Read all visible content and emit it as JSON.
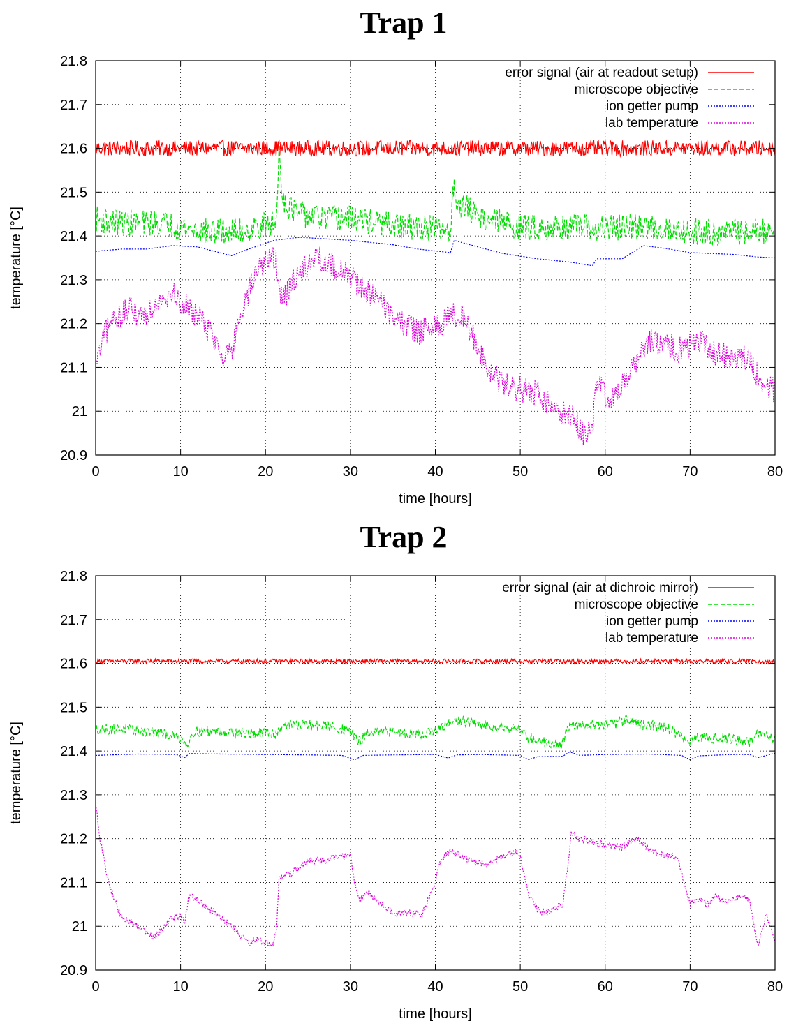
{
  "chart_data": [
    {
      "type": "line",
      "title": "Trap 1",
      "xlabel": "time [hours]",
      "ylabel": "temperature [°C]",
      "xlim": [
        0,
        80
      ],
      "ylim": [
        20.9,
        21.8
      ],
      "xticks": [
        0,
        10,
        20,
        30,
        40,
        50,
        60,
        70,
        80
      ],
      "yticks": [
        20.9,
        21.0,
        21.1,
        21.2,
        21.3,
        21.4,
        21.5,
        21.6,
        21.7,
        21.8
      ],
      "ytick_labels": [
        "20.9",
        "21",
        "21.1",
        "21.2",
        "21.3",
        "21.4",
        "21.5",
        "21.6",
        "21.7",
        "21.8"
      ],
      "grid": true,
      "legend_position": "top-right",
      "series": [
        {
          "name": "error signal (air at readout setup)",
          "color": "#ff0000",
          "dash": "solid",
          "noise": 0.018,
          "x": [
            0,
            80
          ],
          "y": [
            21.6,
            21.6
          ]
        },
        {
          "name": "microscope objective",
          "color": "#00dd00",
          "dash": "dashed",
          "noise": 0.03,
          "x": [
            0,
            2,
            5,
            8,
            10,
            13,
            15,
            17,
            19,
            21.3,
            21.6,
            22.0,
            22.5,
            24,
            27,
            30,
            33,
            36,
            39,
            41.8,
            42.1,
            42.6,
            44,
            46,
            48,
            50,
            53,
            56,
            58,
            59,
            60,
            63,
            66,
            70,
            74,
            77,
            80
          ],
          "y": [
            21.44,
            21.43,
            21.43,
            21.43,
            21.42,
            21.41,
            21.41,
            21.41,
            21.42,
            21.43,
            21.61,
            21.49,
            21.47,
            21.45,
            21.44,
            21.44,
            21.43,
            21.42,
            21.42,
            21.41,
            21.51,
            21.48,
            21.46,
            21.44,
            21.43,
            21.42,
            21.42,
            21.42,
            21.42,
            21.41,
            21.42,
            21.42,
            21.42,
            21.41,
            21.41,
            21.41,
            21.41
          ]
        },
        {
          "name": "ion getter pump",
          "color": "#0000ff",
          "dash": "dotted",
          "noise": 0,
          "x": [
            0,
            3,
            6,
            9,
            12,
            15,
            16,
            18,
            21,
            24,
            30,
            35,
            38,
            41.8,
            42.2,
            45,
            48,
            52,
            56,
            58.5,
            59,
            62,
            63,
            64.5,
            67,
            70,
            75,
            78,
            80
          ],
          "y": [
            21.365,
            21.37,
            21.37,
            21.378,
            21.375,
            21.36,
            21.355,
            21.37,
            21.39,
            21.397,
            21.39,
            21.38,
            21.37,
            21.362,
            21.39,
            21.375,
            21.36,
            21.348,
            21.34,
            21.332,
            21.348,
            21.348,
            21.36,
            21.378,
            21.372,
            21.362,
            21.358,
            21.352,
            21.35
          ]
        },
        {
          "name": "lab temperature",
          "color": "#dd00dd",
          "dash": "dotted",
          "noise": 0.03,
          "x": [
            0,
            1,
            2,
            4,
            6,
            7.5,
            9,
            10.5,
            12,
            13.5,
            15,
            16,
            17,
            18,
            19,
            20,
            21.2,
            21.6,
            22.5,
            24,
            26,
            28,
            30,
            32,
            34,
            36,
            38,
            40,
            42,
            43,
            44,
            45,
            46,
            48,
            50,
            52,
            54,
            56,
            57.5,
            58.5,
            59,
            60,
            61,
            62,
            64,
            65.5,
            67,
            69,
            71,
            73,
            75,
            77,
            78,
            79,
            80
          ],
          "y": [
            21.1,
            21.17,
            21.21,
            21.23,
            21.22,
            21.26,
            21.27,
            21.24,
            21.22,
            21.18,
            21.13,
            21.14,
            21.2,
            21.27,
            21.32,
            21.35,
            21.35,
            21.26,
            21.27,
            21.32,
            21.35,
            21.33,
            21.31,
            21.27,
            21.24,
            21.2,
            21.18,
            21.19,
            21.22,
            21.22,
            21.19,
            21.15,
            21.1,
            21.06,
            21.05,
            21.04,
            21.0,
            20.99,
            20.95,
            20.96,
            21.07,
            21.04,
            21.03,
            21.06,
            21.13,
            21.16,
            21.15,
            21.14,
            21.16,
            21.13,
            21.13,
            21.12,
            21.08,
            21.05,
            21.05
          ]
        }
      ]
    },
    {
      "type": "line",
      "title": "Trap 2",
      "xlabel": "time [hours]",
      "ylabel": "temperature [°C]",
      "xlim": [
        0,
        80
      ],
      "ylim": [
        20.9,
        21.8
      ],
      "xticks": [
        0,
        10,
        20,
        30,
        40,
        50,
        60,
        70,
        80
      ],
      "yticks": [
        20.9,
        21.0,
        21.1,
        21.2,
        21.3,
        21.4,
        21.5,
        21.6,
        21.7,
        21.8
      ],
      "ytick_labels": [
        "20.9",
        "21",
        "21.1",
        "21.2",
        "21.3",
        "21.4",
        "21.5",
        "21.6",
        "21.7",
        "21.8"
      ],
      "grid": true,
      "legend_position": "top-right",
      "series": [
        {
          "name": "error signal (air at dichroic mirror)",
          "color": "#ff0000",
          "dash": "solid",
          "noise": 0.005,
          "x": [
            0,
            80
          ],
          "y": [
            21.605,
            21.605
          ]
        },
        {
          "name": "microscope objective",
          "color": "#00dd00",
          "dash": "dashed",
          "noise": 0.012,
          "x": [
            0,
            3,
            6,
            8,
            10,
            10.8,
            11.5,
            15,
            18,
            20,
            21.3,
            22,
            25,
            28,
            30,
            31,
            32,
            35,
            38,
            40,
            42,
            43,
            45,
            48,
            50,
            51,
            53,
            55,
            55.5,
            58,
            61,
            63,
            64,
            67,
            68.5,
            69.8,
            71,
            74,
            77,
            78,
            80
          ],
          "y": [
            21.45,
            21.45,
            21.445,
            21.44,
            21.43,
            21.415,
            21.445,
            21.445,
            21.44,
            21.44,
            21.44,
            21.46,
            21.46,
            21.455,
            21.445,
            21.42,
            21.44,
            21.445,
            21.44,
            21.445,
            21.465,
            21.47,
            21.46,
            21.455,
            21.45,
            21.43,
            21.42,
            21.415,
            21.455,
            21.46,
            21.46,
            21.475,
            21.46,
            21.455,
            21.44,
            21.42,
            21.43,
            21.43,
            21.42,
            21.44,
            21.43
          ]
        },
        {
          "name": "ion getter pump",
          "color": "#0000ff",
          "dash": "dotted",
          "noise": 0,
          "x": [
            0,
            5,
            9.5,
            10.5,
            11,
            15,
            20,
            25,
            29,
            30.5,
            31.5,
            35,
            40,
            41.5,
            42.5,
            45,
            50,
            51,
            52,
            55,
            55.8,
            57,
            60,
            65,
            69,
            70,
            71,
            75,
            77,
            78,
            80
          ],
          "y": [
            21.39,
            21.393,
            21.392,
            21.385,
            21.394,
            21.393,
            21.392,
            21.391,
            21.39,
            21.38,
            21.39,
            21.391,
            21.392,
            21.384,
            21.391,
            21.392,
            21.39,
            21.38,
            21.387,
            21.388,
            21.398,
            21.39,
            21.392,
            21.393,
            21.39,
            21.38,
            21.389,
            21.392,
            21.392,
            21.385,
            21.395
          ]
        },
        {
          "name": "lab temperature",
          "color": "#dd00dd",
          "dash": "dotted",
          "noise": 0.008,
          "x": [
            0,
            0.5,
            1.5,
            3,
            5,
            7,
            8,
            9,
            10,
            10.5,
            11,
            12,
            14,
            16,
            17,
            18,
            19,
            20,
            21,
            21.3,
            21.6,
            23,
            25,
            27,
            29,
            30,
            30.5,
            31,
            32,
            33,
            35,
            37,
            38.5,
            40,
            40.5,
            41,
            42,
            44,
            46,
            48,
            49.5,
            50,
            51,
            52,
            53,
            54,
            55,
            55.5,
            56,
            57,
            59,
            62,
            63.5,
            65,
            67,
            68,
            68.8,
            69.5,
            70,
            71,
            72,
            73,
            74,
            75,
            76,
            77,
            77.5,
            78,
            79,
            80
          ],
          "y": [
            21.28,
            21.2,
            21.1,
            21.02,
            21.0,
            20.975,
            21.0,
            21.02,
            21.02,
            21.01,
            21.07,
            21.06,
            21.03,
            21.0,
            20.98,
            20.96,
            20.97,
            20.96,
            20.96,
            21.0,
            21.11,
            21.12,
            21.15,
            21.15,
            21.16,
            21.16,
            21.1,
            21.06,
            21.08,
            21.06,
            21.03,
            21.03,
            21.03,
            21.1,
            21.14,
            21.16,
            21.17,
            21.15,
            21.14,
            21.16,
            21.17,
            21.16,
            21.07,
            21.04,
            21.03,
            21.04,
            21.05,
            21.12,
            21.21,
            21.2,
            21.19,
            21.18,
            21.2,
            21.18,
            21.16,
            21.16,
            21.14,
            21.08,
            21.05,
            21.06,
            21.05,
            21.07,
            21.06,
            21.06,
            21.07,
            21.06,
            21.0,
            20.96,
            21.03,
            20.96
          ]
        }
      ]
    }
  ]
}
